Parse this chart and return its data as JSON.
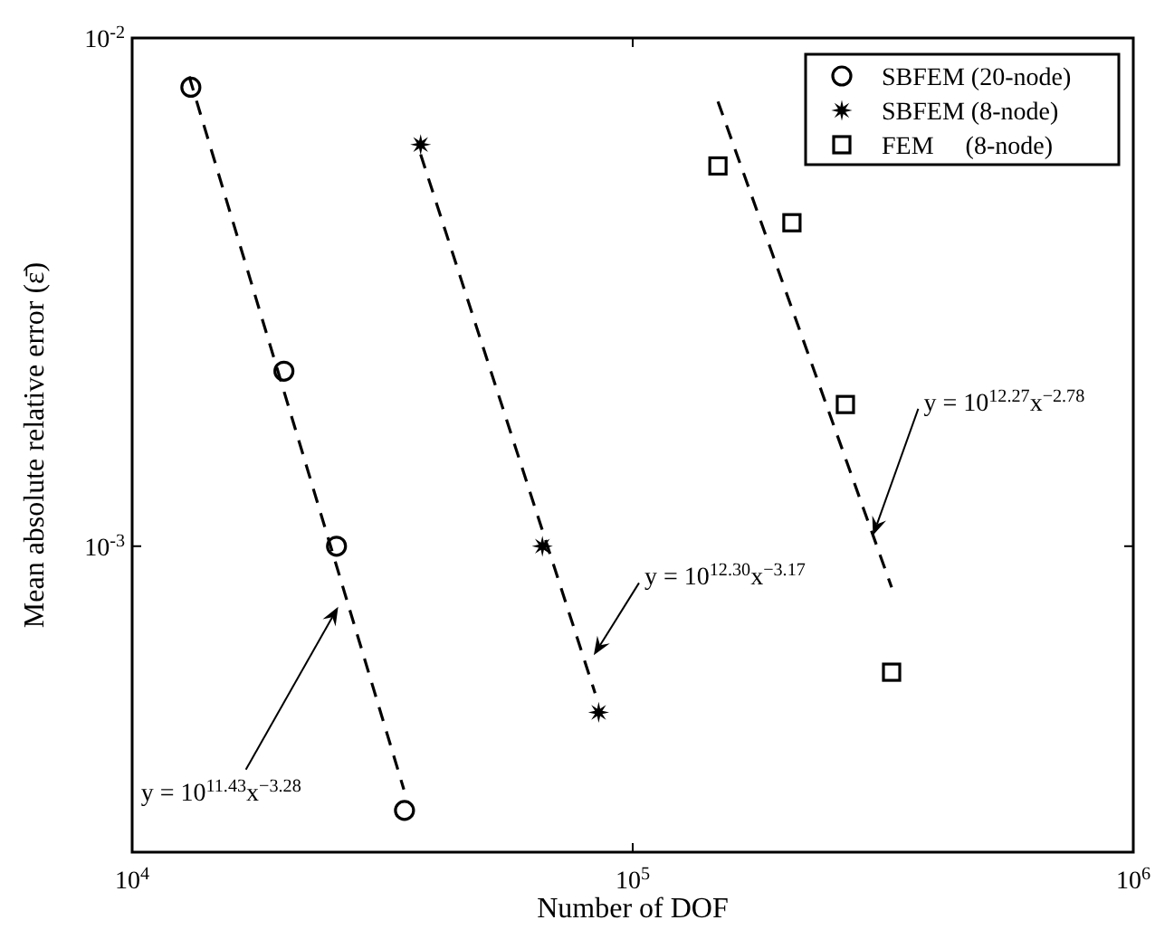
{
  "chart_data": {
    "type": "scatter",
    "xlabel": "Number of DOF",
    "ylabel": "Mean absolute relative error (ε̄)",
    "log": "xy",
    "xlim": [
      10000,
      1000000
    ],
    "ylim": [
      0.00025,
      0.01
    ],
    "xticks": [
      {
        "value": 10000,
        "label": "10$^{4}$"
      },
      {
        "value": 100000,
        "label": "10$^{5}$"
      },
      {
        "value": 1000000,
        "label": "10$^{6}$"
      }
    ],
    "yticks": [
      {
        "value": 0.01,
        "label": "10$^{-2}$"
      },
      {
        "value": 0.001,
        "label": "10$^{-3}$"
      }
    ],
    "grid": false,
    "legend": "top right",
    "series": [
      {
        "name": "SBFEM (20-node)",
        "marker": "circle",
        "color": "#000000",
        "x": [
          13100,
          20100,
          25600,
          35000
        ],
        "values": [
          0.008,
          0.00221,
          0.001,
          0.000302
        ]
      },
      {
        "name": "SBFEM (8-node)",
        "marker": "star",
        "color": "#000000",
        "x": [
          37700,
          66000,
          85500
        ],
        "values": [
          0.00617,
          0.001,
          0.000471
        ]
      },
      {
        "name": "FEM     (8-node)",
        "marker": "square",
        "color": "#000000",
        "x": [
          148000,
          208000,
          266000,
          329000
        ],
        "values": [
          0.0056,
          0.00433,
          0.0019,
          0.000565
        ]
      },
      {
        "type": "line",
        "line_style": "dashed",
        "marker": "none",
        "color": "#000000",
        "x": [
          13000,
          34900
        ],
        "values": [
          0.0084,
          0.000332
        ]
      },
      {
        "type": "line",
        "line_style": "dashed",
        "marker": "none",
        "color": "#000000",
        "x": [
          37700,
          84100
        ],
        "values": [
          0.0059,
          0.000514
        ]
      },
      {
        "type": "line",
        "line_style": "dashed",
        "marker": "none",
        "color": "#000000",
        "x": [
          148000,
          329000
        ],
        "values": [
          0.0075,
          0.00083
        ]
      }
    ],
    "annotations": [
      {
        "text": "y = 10$^{11.43}$x$^{−3.28}$",
        "x": 25800,
        "y": 0.00076
      },
      {
        "text": "y = 10$^{12.30}$x$^{−3.17}$",
        "x": 83600,
        "y": 0.00061
      },
      {
        "text": "y = 10$^{12.27}$x$^{−2.78}$",
        "x": 302000,
        "y": 0.00105
      }
    ]
  }
}
